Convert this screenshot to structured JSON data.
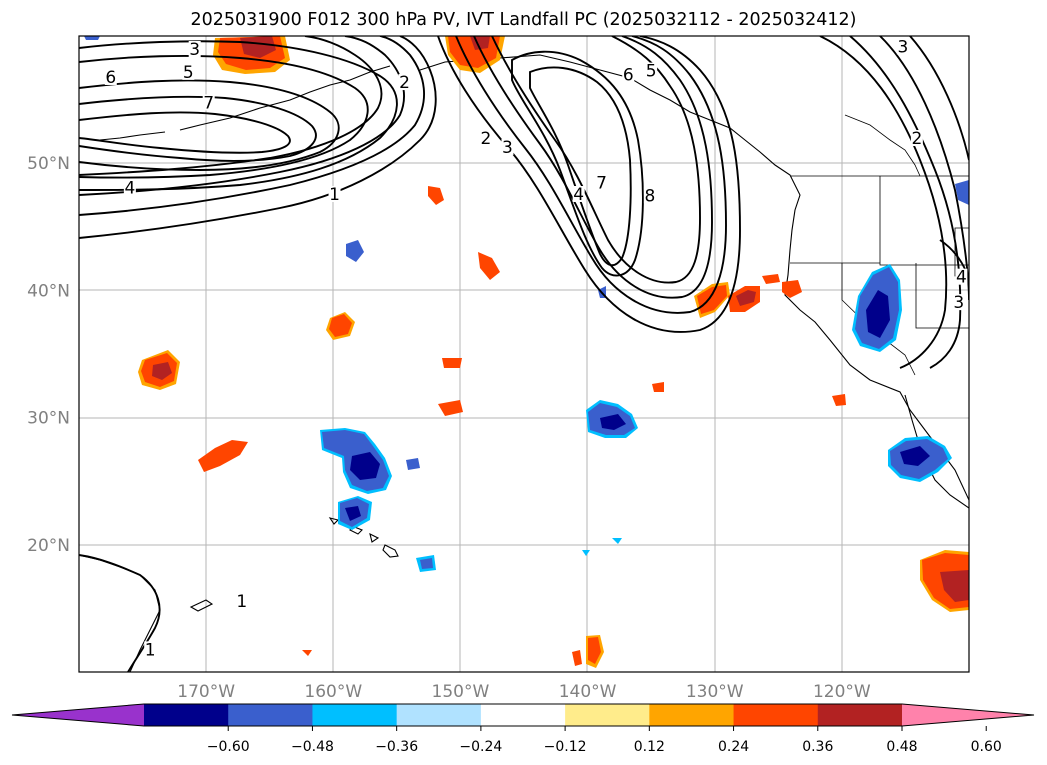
{
  "title": "2025031900 F012 300 hPa PV, IVT Landfall PC (2025032112 - 2025032412)",
  "map": {
    "projection": "PlateCarree",
    "lon_range": [
      -180,
      -110
    ],
    "lat_range": [
      10,
      60
    ],
    "gridlines": true,
    "lat_labels": [
      {
        "lat": 50,
        "label": "50°N"
      },
      {
        "lat": 40,
        "label": "40°N"
      },
      {
        "lat": 30,
        "label": "30°N"
      },
      {
        "lat": 20,
        "label": "20°N"
      }
    ],
    "lon_labels": [
      {
        "lon": -170,
        "label": "170°W"
      },
      {
        "lon": -160,
        "label": "160°W"
      },
      {
        "lon": -150,
        "label": "150°W"
      },
      {
        "lon": -140,
        "label": "140°W"
      },
      {
        "lon": -130,
        "label": "130°W"
      },
      {
        "lon": -120,
        "label": "120°W"
      }
    ],
    "contour_labels": [
      {
        "text": "3",
        "lon": -170.9,
        "lat": 58.9
      },
      {
        "text": "6",
        "lon": -177.5,
        "lat": 56.7
      },
      {
        "text": "5",
        "lon": -171.4,
        "lat": 57.1
      },
      {
        "text": "7",
        "lon": -169.8,
        "lat": 54.7
      },
      {
        "text": "2",
        "lon": -154.4,
        "lat": 56.3
      },
      {
        "text": "4",
        "lon": -176.0,
        "lat": 48.0
      },
      {
        "text": "1",
        "lon": -159.9,
        "lat": 47.5
      },
      {
        "text": "2",
        "lon": -148.0,
        "lat": 51.9
      },
      {
        "text": "3",
        "lon": -146.3,
        "lat": 51.2
      },
      {
        "text": "7",
        "lon": -138.9,
        "lat": 48.4
      },
      {
        "text": "4",
        "lon": -140.7,
        "lat": 47.5
      },
      {
        "text": "8",
        "lon": -135.1,
        "lat": 47.4
      },
      {
        "text": "6",
        "lon": -136.8,
        "lat": 56.9
      },
      {
        "text": "5",
        "lon": -135.0,
        "lat": 57.2
      },
      {
        "text": "3",
        "lon": -115.2,
        "lat": 59.1
      },
      {
        "text": "2",
        "lon": -114.1,
        "lat": 51.9
      },
      {
        "text": "3",
        "lon": -110.8,
        "lat": 39.0
      },
      {
        "text": "4",
        "lon": -110.6,
        "lat": 41.0
      },
      {
        "text": "1",
        "lon": -167.2,
        "lat": 15.5
      },
      {
        "text": "1",
        "lon": -174.4,
        "lat": 11.7
      }
    ]
  },
  "colorbar": {
    "colors": [
      "#9932cc",
      "#00008b",
      "#3a5fcd",
      "#00bfff",
      "#b0e2ff",
      "#ffffff",
      "#ffec8b",
      "#ffa500",
      "#ff4500",
      "#b22222",
      "#ff82ab"
    ],
    "ticks": [
      "−0.60",
      "−0.48",
      "−0.36",
      "−0.24",
      "−0.12",
      "0.12",
      "0.24",
      "0.36",
      "0.48",
      "0.60"
    ],
    "extend": "both"
  }
}
